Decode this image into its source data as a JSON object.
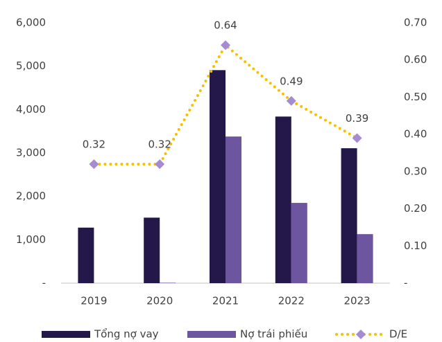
{
  "chart_data": {
    "type": "bar",
    "categories": [
      "2019",
      "2020",
      "2021",
      "2022",
      "2023"
    ],
    "series": [
      {
        "name": "Tổng nợ vay",
        "color": "#24174a",
        "values": [
          1280,
          1510,
          4910,
          3840,
          3110
        ]
      },
      {
        "name": "Nợ trái phiếu",
        "color": "#6d55a0",
        "values": [
          0,
          10,
          3380,
          1850,
          1130
        ]
      },
      {
        "name": "D/E",
        "type": "line",
        "axis": "y2",
        "color": "#f5c000",
        "marker_color": "#a48bd2",
        "values": [
          0.32,
          0.32,
          0.64,
          0.49,
          0.39
        ]
      }
    ],
    "ylim": [
      0,
      6000
    ],
    "yticks": [
      {
        "value": 0,
        "label": "-"
      },
      {
        "value": 1000,
        "label": "1,000"
      },
      {
        "value": 2000,
        "label": "2,000"
      },
      {
        "value": 3000,
        "label": "3,000"
      },
      {
        "value": 4000,
        "label": "4,000"
      },
      {
        "value": 5000,
        "label": "5,000"
      },
      {
        "value": 6000,
        "label": "6,000"
      }
    ],
    "y2lim": [
      0,
      0.7
    ],
    "y2ticks": [
      {
        "value": 0,
        "label": "-"
      },
      {
        "value": 0.1,
        "label": "0.10"
      },
      {
        "value": 0.2,
        "label": "0.20"
      },
      {
        "value": 0.3,
        "label": "0.30"
      },
      {
        "value": 0.4,
        "label": "0.40"
      },
      {
        "value": 0.5,
        "label": "0.50"
      },
      {
        "value": 0.6,
        "label": "0.60"
      },
      {
        "value": 0.7,
        "label": "0.70"
      }
    ],
    "grid": false,
    "legend": "bottom"
  }
}
